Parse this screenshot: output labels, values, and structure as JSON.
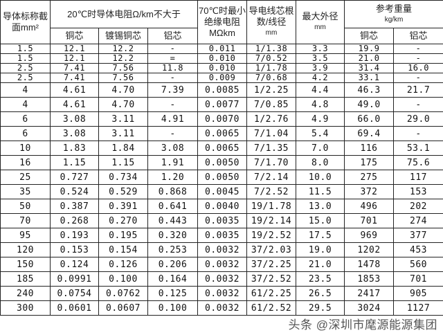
{
  "header": {
    "section": "导体标称截面mm²",
    "resistance_group": "20℃时导体电阻Ω/km不大于",
    "copper": "铜芯",
    "tinned_copper": "镀锡铜芯",
    "aluminum": "铝芯",
    "insulation": "70℃时最小绝缘电阻MΩkm",
    "strands": "导电线芯根数/线径",
    "strands_unit": "mm",
    "max_diameter": "最大外径",
    "max_diameter_unit": "mm",
    "weight_group": "参考重量",
    "weight_unit": "kg/km",
    "weight_copper": "铜芯",
    "weight_aluminum": "铝芯"
  },
  "rows": [
    [
      "1.5",
      "12.1",
      "12.2",
      "-",
      "0.011",
      "1/1.38",
      "3.3",
      "19.9",
      "-"
    ],
    [
      "1.5",
      "12.1",
      "12.2",
      "=",
      "0.010",
      "7/0.52",
      "3.5",
      "21.0",
      "-"
    ],
    [
      "2.5",
      "7.41",
      "7.56",
      "11.8",
      "0.010",
      "1/1.78",
      "3.9",
      "31.4",
      "16.0"
    ],
    [
      "2.5",
      "7.41",
      "7.56",
      "-",
      "0.009",
      "7/0.68",
      "4.2",
      "33.1",
      "-"
    ],
    [
      "4",
      "4.61",
      "4.70",
      "7.39",
      "0.0085",
      "1/2.25",
      "4.4",
      "46.3",
      "21.7"
    ],
    [
      "4",
      "4.61",
      "4.70",
      "-",
      "0.0077",
      "7/0.85",
      "4.8",
      "49.0",
      "-"
    ],
    [
      "6",
      "3.08",
      "3.11",
      "4.91",
      "0.0070",
      "1/2.76",
      "4.9",
      "66.0",
      "29.0"
    ],
    [
      "6",
      "3.08",
      "3.11",
      "-",
      "0.0065",
      "7/1.04",
      "5.4",
      "69.4",
      "-"
    ],
    [
      "10",
      "1.83",
      "1.84",
      "3.08",
      "0.0065",
      "7/1.35",
      "7.0",
      "116",
      "53.1"
    ],
    [
      "16",
      "1.15",
      "1.15",
      "1.91",
      "0.0050",
      "7/1.70",
      "8.0",
      "175",
      "75.6"
    ],
    [
      "25",
      "0.727",
      "0.734",
      "1.20",
      "0.0050",
      "7/2.14",
      "10.0",
      "275",
      "117"
    ],
    [
      "35",
      "0.524",
      "0.529",
      "0.868",
      "0.0045",
      "7/2.52",
      "11.5",
      "372",
      "153"
    ],
    [
      "50",
      "0.387",
      "0.391",
      "0.641",
      "0.0040",
      "19/1.78",
      "13.0",
      "496",
      "202"
    ],
    [
      "70",
      "0.268",
      "0.270",
      "0.443",
      "0.0035",
      "19/2.14",
      "15.0",
      "701",
      "274"
    ],
    [
      "95",
      "0.193",
      "0.195",
      "0.320",
      "0.0035",
      "19/2.52",
      "17.5",
      "969",
      "377"
    ],
    [
      "120",
      "0.153",
      "0.154",
      "0.253",
      "0.0032",
      "37/2.03",
      "19.0",
      "1202",
      "453"
    ],
    [
      "150",
      "0.124",
      "0.126",
      "0.206",
      "0.0032",
      "37/2.25",
      "21.0",
      "1478",
      "560"
    ],
    [
      "185",
      "0.0991",
      "0.100",
      "0.164",
      "0.0032",
      "37/2.52",
      "23.5",
      "1853",
      "701"
    ],
    [
      "240",
      "0.0754",
      "0.0762",
      "0.125",
      "0.0032",
      "61/2.25",
      "26.5",
      "2417",
      "905"
    ],
    [
      "300",
      "0.0601",
      "0.0607",
      "0.100",
      "0.0032",
      "61/2.52",
      "29.5",
      "3024",
      "1127"
    ]
  ],
  "watermark": "头条 @深圳市麾源能源集团"
}
